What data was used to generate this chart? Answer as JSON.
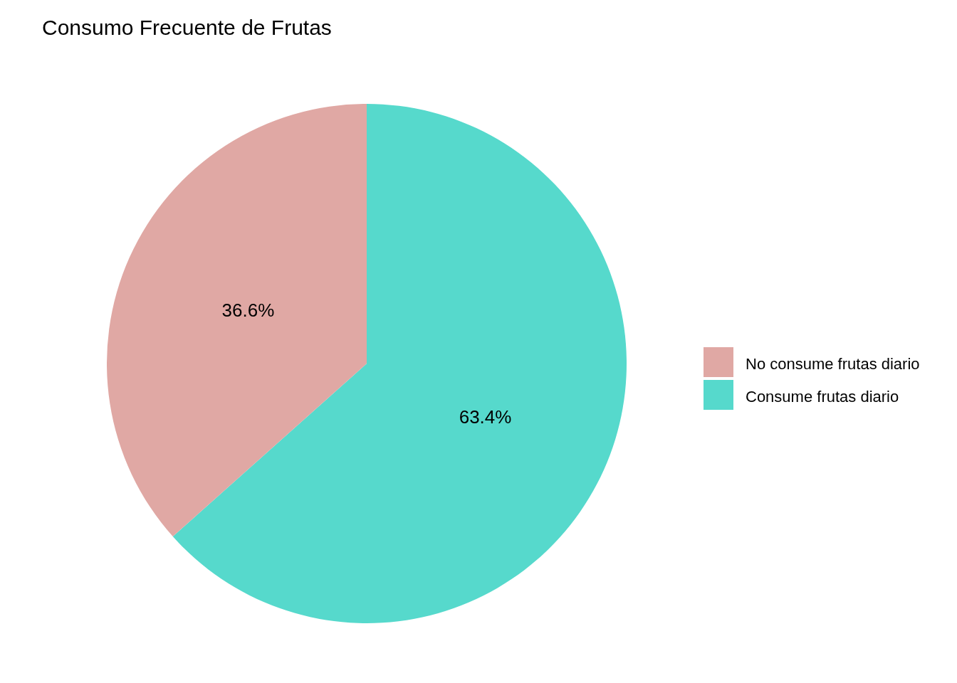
{
  "chart_data": {
    "type": "pie",
    "title": "Consumo Frecuente de Frutas",
    "categories": [
      "No consume frutas diario",
      "Consume frutas diario"
    ],
    "values": [
      36.6,
      63.4
    ],
    "colors": [
      "#e0a8a4",
      "#56d9cc"
    ],
    "value_labels": [
      "36.6%",
      "63.4%"
    ],
    "legend": "right"
  }
}
